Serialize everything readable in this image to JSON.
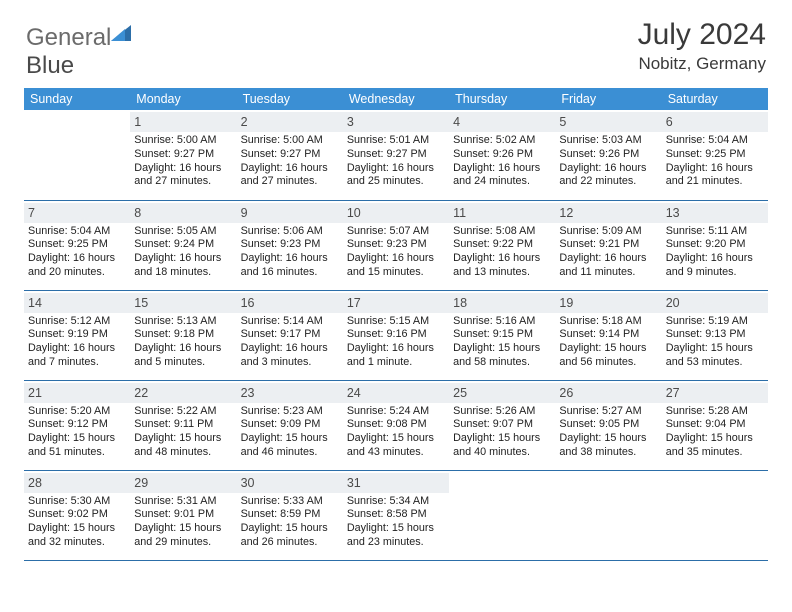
{
  "logo": {
    "text1": "General",
    "text2": "Blue"
  },
  "title": "July 2024",
  "location": "Nobitz, Germany",
  "colors": {
    "header_bg": "#3b8fd4",
    "header_text": "#ffffff",
    "daynum_bg": "#eceff2",
    "row_border": "#2c6ea8",
    "logo_gray": "#6b6b6b",
    "logo_blue": "#2c6ea8"
  },
  "dayHeaders": [
    "Sunday",
    "Monday",
    "Tuesday",
    "Wednesday",
    "Thursday",
    "Friday",
    "Saturday"
  ],
  "weeks": [
    [
      null,
      {
        "n": "1",
        "sunrise": "5:00 AM",
        "sunset": "9:27 PM",
        "daylight": "16 hours and 27 minutes."
      },
      {
        "n": "2",
        "sunrise": "5:00 AM",
        "sunset": "9:27 PM",
        "daylight": "16 hours and 27 minutes."
      },
      {
        "n": "3",
        "sunrise": "5:01 AM",
        "sunset": "9:27 PM",
        "daylight": "16 hours and 25 minutes."
      },
      {
        "n": "4",
        "sunrise": "5:02 AM",
        "sunset": "9:26 PM",
        "daylight": "16 hours and 24 minutes."
      },
      {
        "n": "5",
        "sunrise": "5:03 AM",
        "sunset": "9:26 PM",
        "daylight": "16 hours and 22 minutes."
      },
      {
        "n": "6",
        "sunrise": "5:04 AM",
        "sunset": "9:25 PM",
        "daylight": "16 hours and 21 minutes."
      }
    ],
    [
      {
        "n": "7",
        "sunrise": "5:04 AM",
        "sunset": "9:25 PM",
        "daylight": "16 hours and 20 minutes."
      },
      {
        "n": "8",
        "sunrise": "5:05 AM",
        "sunset": "9:24 PM",
        "daylight": "16 hours and 18 minutes."
      },
      {
        "n": "9",
        "sunrise": "5:06 AM",
        "sunset": "9:23 PM",
        "daylight": "16 hours and 16 minutes."
      },
      {
        "n": "10",
        "sunrise": "5:07 AM",
        "sunset": "9:23 PM",
        "daylight": "16 hours and 15 minutes."
      },
      {
        "n": "11",
        "sunrise": "5:08 AM",
        "sunset": "9:22 PM",
        "daylight": "16 hours and 13 minutes."
      },
      {
        "n": "12",
        "sunrise": "5:09 AM",
        "sunset": "9:21 PM",
        "daylight": "16 hours and 11 minutes."
      },
      {
        "n": "13",
        "sunrise": "5:11 AM",
        "sunset": "9:20 PM",
        "daylight": "16 hours and 9 minutes."
      }
    ],
    [
      {
        "n": "14",
        "sunrise": "5:12 AM",
        "sunset": "9:19 PM",
        "daylight": "16 hours and 7 minutes."
      },
      {
        "n": "15",
        "sunrise": "5:13 AM",
        "sunset": "9:18 PM",
        "daylight": "16 hours and 5 minutes."
      },
      {
        "n": "16",
        "sunrise": "5:14 AM",
        "sunset": "9:17 PM",
        "daylight": "16 hours and 3 minutes."
      },
      {
        "n": "17",
        "sunrise": "5:15 AM",
        "sunset": "9:16 PM",
        "daylight": "16 hours and 1 minute."
      },
      {
        "n": "18",
        "sunrise": "5:16 AM",
        "sunset": "9:15 PM",
        "daylight": "15 hours and 58 minutes."
      },
      {
        "n": "19",
        "sunrise": "5:18 AM",
        "sunset": "9:14 PM",
        "daylight": "15 hours and 56 minutes."
      },
      {
        "n": "20",
        "sunrise": "5:19 AM",
        "sunset": "9:13 PM",
        "daylight": "15 hours and 53 minutes."
      }
    ],
    [
      {
        "n": "21",
        "sunrise": "5:20 AM",
        "sunset": "9:12 PM",
        "daylight": "15 hours and 51 minutes."
      },
      {
        "n": "22",
        "sunrise": "5:22 AM",
        "sunset": "9:11 PM",
        "daylight": "15 hours and 48 minutes."
      },
      {
        "n": "23",
        "sunrise": "5:23 AM",
        "sunset": "9:09 PM",
        "daylight": "15 hours and 46 minutes."
      },
      {
        "n": "24",
        "sunrise": "5:24 AM",
        "sunset": "9:08 PM",
        "daylight": "15 hours and 43 minutes."
      },
      {
        "n": "25",
        "sunrise": "5:26 AM",
        "sunset": "9:07 PM",
        "daylight": "15 hours and 40 minutes."
      },
      {
        "n": "26",
        "sunrise": "5:27 AM",
        "sunset": "9:05 PM",
        "daylight": "15 hours and 38 minutes."
      },
      {
        "n": "27",
        "sunrise": "5:28 AM",
        "sunset": "9:04 PM",
        "daylight": "15 hours and 35 minutes."
      }
    ],
    [
      {
        "n": "28",
        "sunrise": "5:30 AM",
        "sunset": "9:02 PM",
        "daylight": "15 hours and 32 minutes."
      },
      {
        "n": "29",
        "sunrise": "5:31 AM",
        "sunset": "9:01 PM",
        "daylight": "15 hours and 29 minutes."
      },
      {
        "n": "30",
        "sunrise": "5:33 AM",
        "sunset": "8:59 PM",
        "daylight": "15 hours and 26 minutes."
      },
      {
        "n": "31",
        "sunrise": "5:34 AM",
        "sunset": "8:58 PM",
        "daylight": "15 hours and 23 minutes."
      },
      null,
      null,
      null
    ]
  ],
  "labels": {
    "sunrise": "Sunrise:",
    "sunset": "Sunset:",
    "daylight": "Daylight:"
  }
}
